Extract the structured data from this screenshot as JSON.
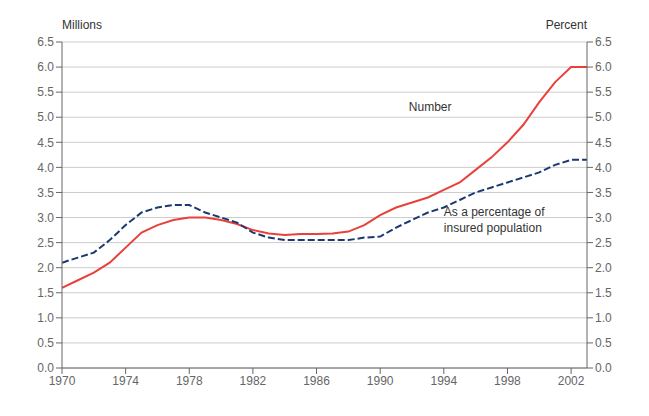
{
  "chart_data": {
    "type": "line",
    "x": [
      1970,
      1971,
      1972,
      1973,
      1974,
      1975,
      1976,
      1977,
      1978,
      1979,
      1980,
      1981,
      1982,
      1983,
      1984,
      1985,
      1986,
      1987,
      1988,
      1989,
      1990,
      1991,
      1992,
      1993,
      1994,
      1995,
      1996,
      1997,
      1998,
      1999,
      2000,
      2001,
      2002,
      2003
    ],
    "xlim": [
      1970,
      2003
    ],
    "xticks": [
      1970,
      1974,
      1978,
      1982,
      1986,
      1990,
      1994,
      1998,
      2002
    ],
    "ylim": [
      0,
      6.5
    ],
    "yticks": [
      {
        "value": 0,
        "label": "0.0"
      },
      0.5,
      {
        "value": 1.0,
        "label": "1.0"
      },
      1.5,
      {
        "value": 2.0,
        "label": "2.0"
      },
      2.5,
      {
        "value": 3.0,
        "label": "3.0"
      },
      3.5,
      {
        "value": 4.0,
        "label": "4.0"
      },
      4.5,
      {
        "value": 5.0,
        "label": "5.0"
      },
      5.5,
      {
        "value": 6.0,
        "label": "6.0"
      },
      6.5
    ],
    "y2lim": [
      0,
      6.5
    ],
    "y2ticks": [
      {
        "value": 0,
        "label": "0.0"
      },
      0.5,
      {
        "value": 1.0,
        "label": "1.0"
      },
      1.5,
      {
        "value": 2.0,
        "label": "2.0"
      },
      2.5,
      {
        "value": 3.0,
        "label": "3.0"
      },
      3.5,
      {
        "value": 4.0,
        "label": "4.0"
      },
      4.5,
      {
        "value": 5.0,
        "label": "5.0"
      },
      5.5,
      {
        "value": 6.0,
        "label": "6.0"
      },
      6.5
    ],
    "y_label": "Millions",
    "y2_label": "Percent",
    "grid": true,
    "series": [
      {
        "color": "#e8413c",
        "line_style": "solid",
        "axis": "y",
        "values": [
          1.6,
          1.75,
          1.9,
          2.1,
          2.4,
          2.7,
          2.85,
          2.95,
          3.0,
          3.0,
          2.95,
          2.87,
          2.75,
          2.68,
          2.65,
          2.67,
          2.67,
          2.68,
          2.72,
          2.85,
          3.05,
          3.2,
          3.3,
          3.4,
          3.55,
          3.7,
          3.95,
          4.2,
          4.5,
          4.85,
          5.3,
          5.7,
          6.0,
          6.0
        ]
      },
      {
        "color": "#1a3a6e",
        "line_style": "dashed",
        "axis": "y2",
        "values": [
          2.1,
          2.2,
          2.3,
          2.55,
          2.85,
          3.1,
          3.2,
          3.25,
          3.25,
          3.1,
          3.0,
          2.9,
          2.7,
          2.6,
          2.55,
          2.55,
          2.55,
          2.55,
          2.55,
          2.6,
          2.62,
          2.8,
          2.95,
          3.1,
          3.2,
          3.35,
          3.5,
          3.6,
          3.7,
          3.8,
          3.9,
          4.05,
          4.15,
          4.15
        ]
      }
    ],
    "annotations": [
      {
        "text": "Number",
        "x": 1991.8,
        "y": 5.2
      },
      {
        "text": "As a percentage of\ninsured population",
        "x": 1994.0,
        "y": 2.95
      }
    ]
  }
}
